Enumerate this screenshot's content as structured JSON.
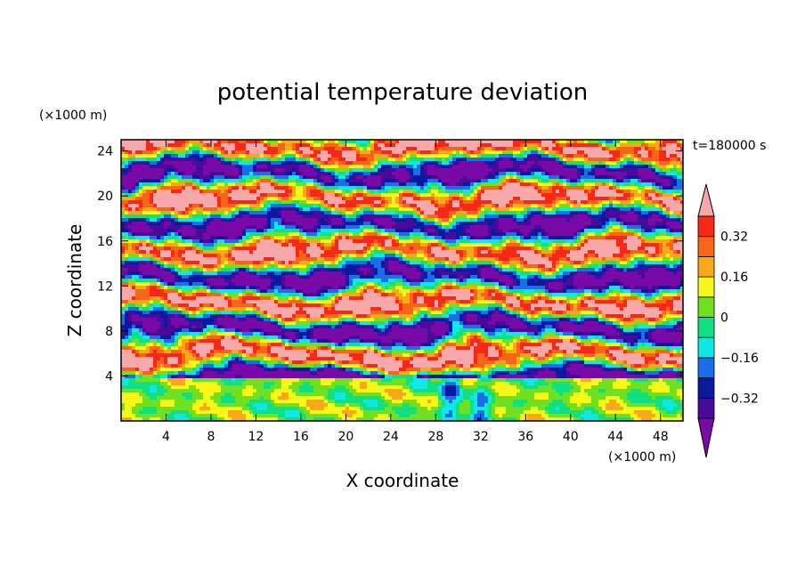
{
  "chart_data": {
    "type": "heatmap",
    "title": "potential temperature deviation",
    "time_label": "t=180000 s",
    "xlabel": "X coordinate",
    "ylabel": "Z coordinate",
    "x_unit": "(×1000 m)",
    "y_unit": "(×1000 m)",
    "xlim": [
      0,
      50
    ],
    "ylim": [
      0,
      25
    ],
    "x_ticks": [
      "4",
      "8",
      "12",
      "16",
      "20",
      "24",
      "28",
      "32",
      "36",
      "40",
      "44",
      "48"
    ],
    "y_ticks": [
      "4",
      "8",
      "12",
      "16",
      "20",
      "24"
    ],
    "colorbar": {
      "levels": [
        -0.4,
        -0.32,
        -0.24,
        -0.16,
        -0.08,
        0,
        0.08,
        0.16,
        0.24,
        0.32,
        0.4
      ],
      "tick_labels": [
        "0.32",
        "0.16",
        "0",
        "−0.16",
        "−0.32"
      ],
      "tick_values": [
        0.32,
        0.16,
        0,
        -0.16,
        -0.32
      ],
      "colors": [
        "#7a0aa8",
        "#4a0a9a",
        "#0a1aa0",
        "#1a6ee8",
        "#10e8e8",
        "#10e080",
        "#70e020",
        "#f8f818",
        "#f8a818",
        "#f86418",
        "#f82818",
        "#f8a8a8"
      ]
    }
  }
}
